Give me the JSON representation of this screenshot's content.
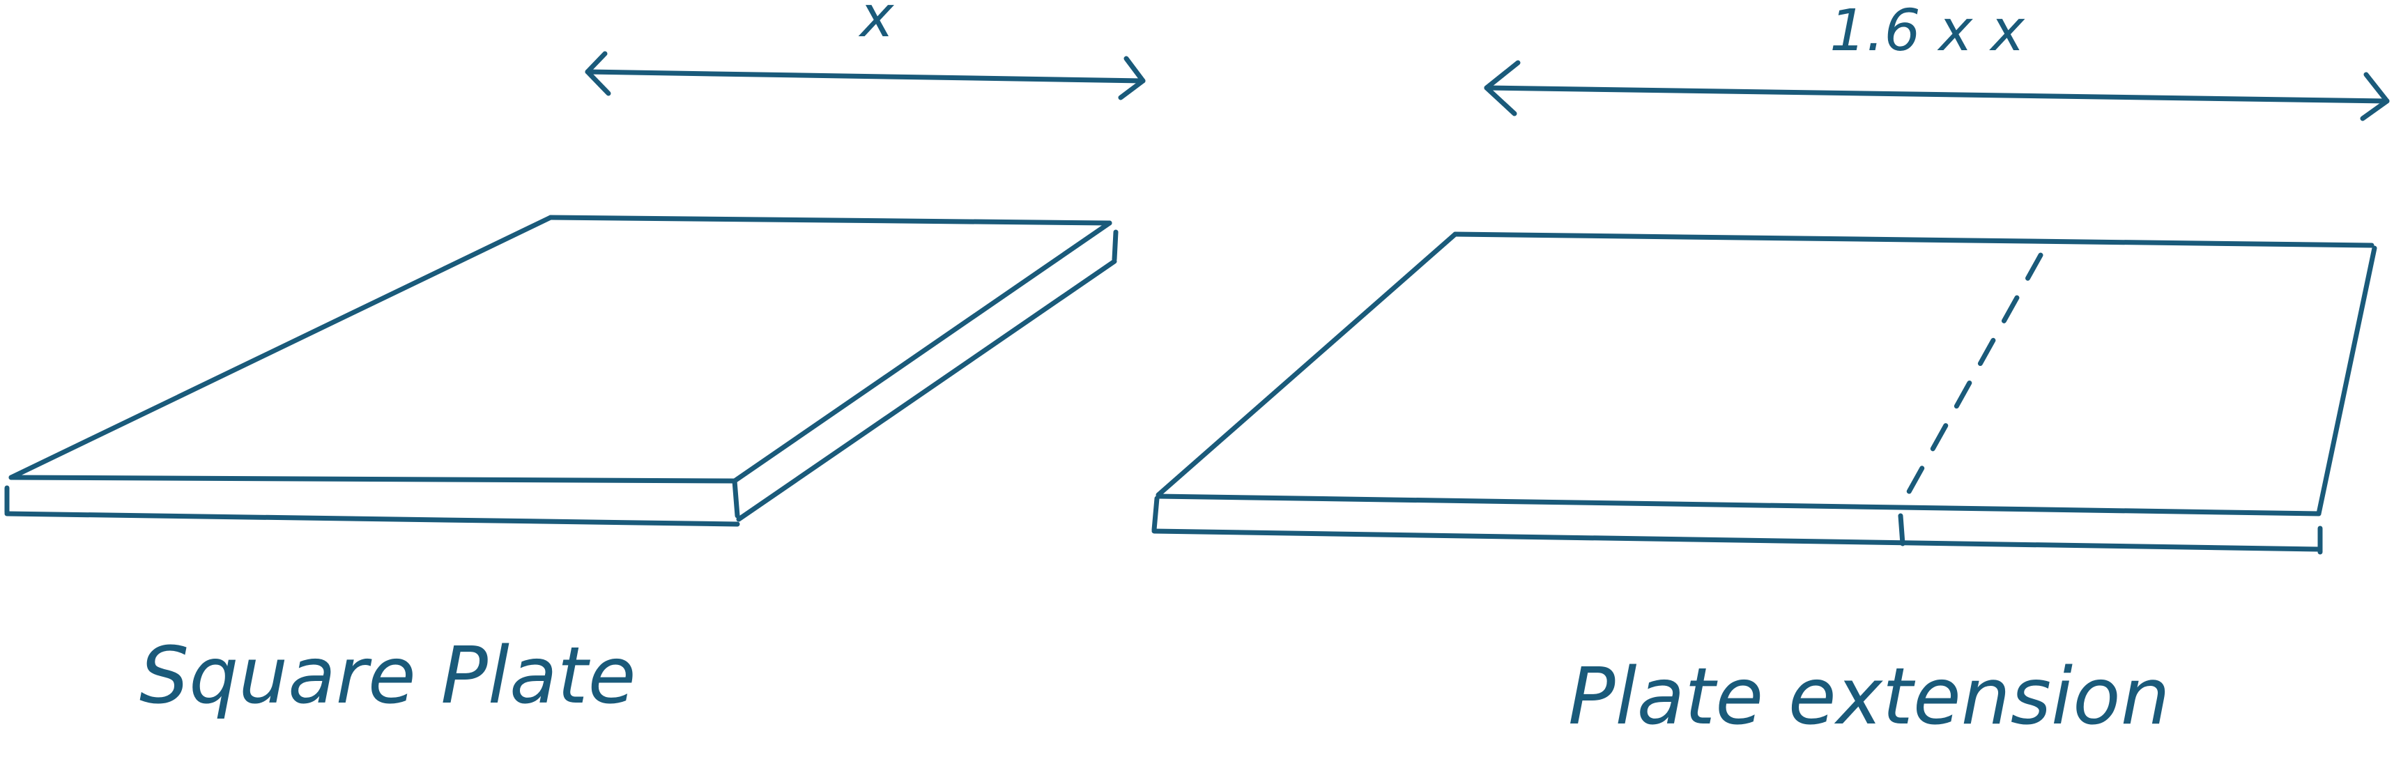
{
  "left_figure": {
    "dimension_label": "x",
    "caption": "Square Plate"
  },
  "right_figure": {
    "dimension_label": "1.6 x x",
    "caption": "Plate extension"
  },
  "colors": {
    "ink": "#1a5a7a",
    "background": "#ffffff"
  }
}
